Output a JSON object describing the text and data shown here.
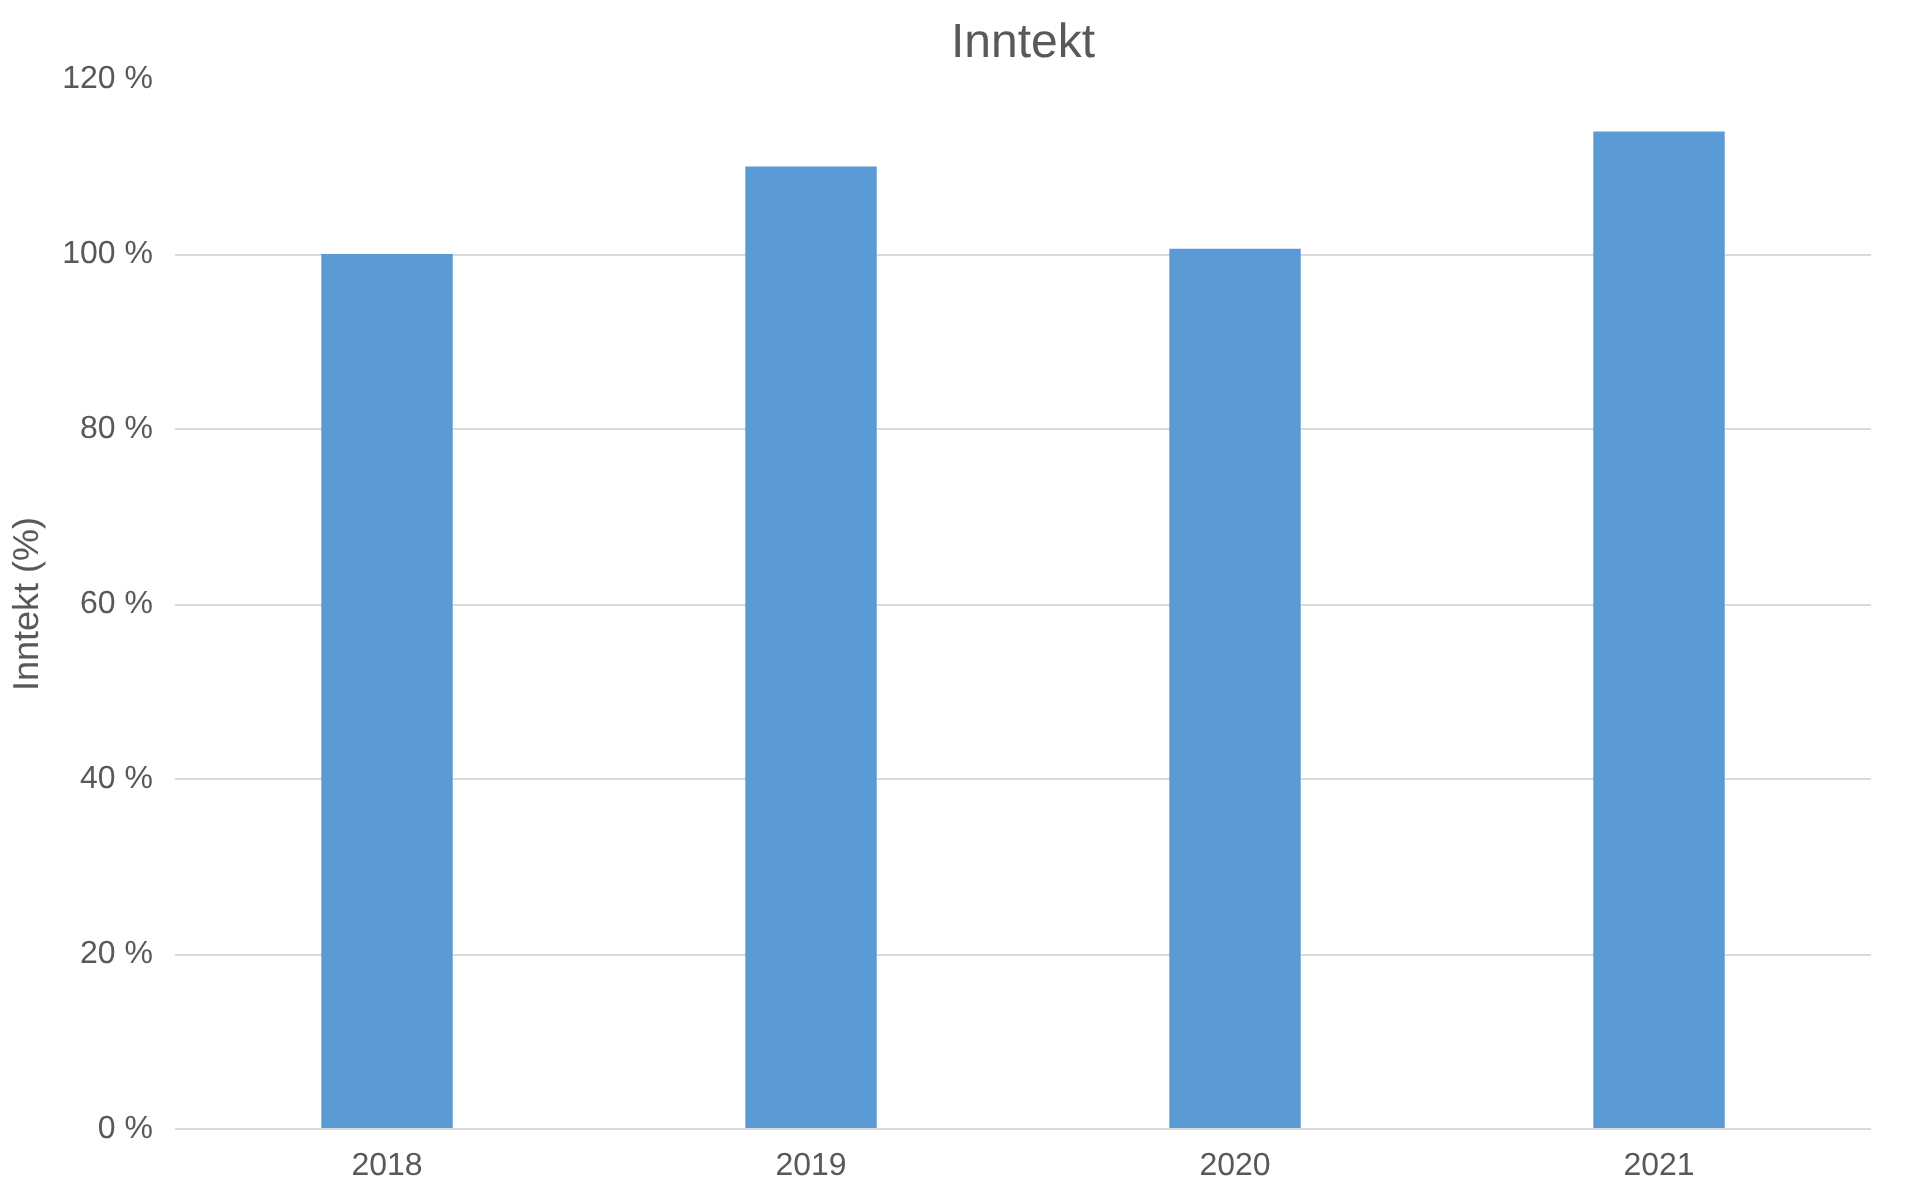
{
  "chart_data": {
    "type": "bar",
    "title": "Inntekt",
    "ylabel": "Inntekt (%)",
    "categories": [
      "2018",
      "2019",
      "2020",
      "2021"
    ],
    "values": [
      100,
      110,
      100.6,
      114
    ],
    "color": "#5b9bd5",
    "ylim": [
      0,
      120
    ],
    "yticks": [
      {
        "value": 0,
        "label": "0 %"
      },
      {
        "value": 20,
        "label": "20 %"
      },
      {
        "value": 40,
        "label": "40 %"
      },
      {
        "value": 60,
        "label": "60 %"
      },
      {
        "value": 80,
        "label": "80 %"
      },
      {
        "value": 100,
        "label": "100 %"
      },
      {
        "value": 120,
        "label": "120 %"
      }
    ],
    "grid": "y"
  }
}
